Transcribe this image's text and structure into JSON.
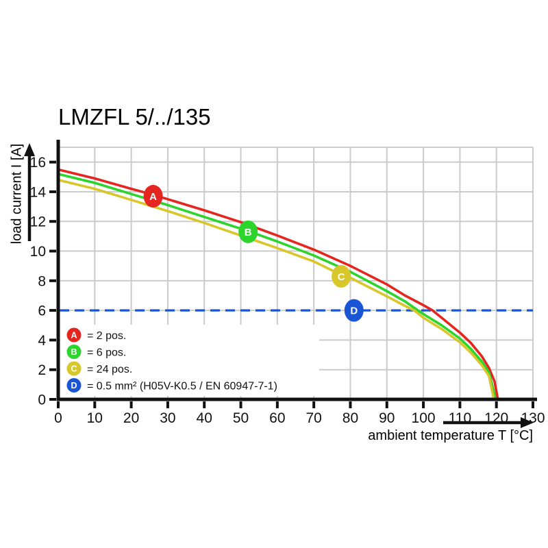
{
  "page": {
    "background": "#ffffff"
  },
  "chart_data": {
    "type": "line",
    "title": "LMZFL 5/../135",
    "xlabel": "ambient temperature T [°C]",
    "ylabel": "load current I [A]",
    "xlim": [
      0,
      130
    ],
    "ylim": [
      0,
      17
    ],
    "x_ticks": [
      0,
      10,
      20,
      30,
      40,
      50,
      60,
      70,
      80,
      90,
      100,
      110,
      120,
      130
    ],
    "y_ticks": [
      0,
      2,
      4,
      6,
      8,
      10,
      12,
      14,
      16
    ],
    "grid": true,
    "grid_color": "#cbcbcb",
    "axis_color": "#111111",
    "series": [
      {
        "id": "A",
        "name": "2 pos.",
        "color": "#e52520",
        "marker": {
          "letter": "A",
          "t": 26,
          "i": 13.7
        },
        "points": [
          [
            0,
            15.5
          ],
          [
            10,
            14.9
          ],
          [
            20,
            14.2
          ],
          [
            26,
            13.8
          ],
          [
            30,
            13.5
          ],
          [
            40,
            12.75
          ],
          [
            50,
            11.95
          ],
          [
            60,
            11.05
          ],
          [
            70,
            10.1
          ],
          [
            80,
            9.0
          ],
          [
            90,
            7.75
          ],
          [
            95,
            7.0
          ],
          [
            100,
            6.35
          ],
          [
            102.5,
            6.0
          ],
          [
            105,
            5.5
          ],
          [
            110,
            4.5
          ],
          [
            113,
            3.8
          ],
          [
            116,
            2.9
          ],
          [
            118,
            2.1
          ],
          [
            119.5,
            1.2
          ],
          [
            120.4,
            0
          ]
        ]
      },
      {
        "id": "B",
        "name": "6 pos.",
        "color": "#2cd42c",
        "marker": {
          "letter": "B",
          "t": 52,
          "i": 11.3
        },
        "points": [
          [
            0,
            15.2
          ],
          [
            10,
            14.6
          ],
          [
            20,
            13.85
          ],
          [
            30,
            13.1
          ],
          [
            40,
            12.3
          ],
          [
            52,
            11.35
          ],
          [
            60,
            10.65
          ],
          [
            70,
            9.7
          ],
          [
            80,
            8.6
          ],
          [
            90,
            7.3
          ],
          [
            95,
            6.6
          ],
          [
            98.5,
            6.0
          ],
          [
            100,
            5.75
          ],
          [
            105,
            5.0
          ],
          [
            110,
            4.1
          ],
          [
            113,
            3.4
          ],
          [
            116,
            2.55
          ],
          [
            118,
            1.8
          ],
          [
            119.8,
            0
          ]
        ]
      },
      {
        "id": "C",
        "name": "24 pos.",
        "color": "#d7c72b",
        "marker": {
          "letter": "C",
          "t": 77.5,
          "i": 8.3
        },
        "points": [
          [
            0,
            14.8
          ],
          [
            10,
            14.2
          ],
          [
            20,
            13.45
          ],
          [
            30,
            12.7
          ],
          [
            40,
            11.9
          ],
          [
            50,
            11.05
          ],
          [
            60,
            10.2
          ],
          [
            70,
            9.3
          ],
          [
            77.5,
            8.4
          ],
          [
            80,
            8.2
          ],
          [
            90,
            6.95
          ],
          [
            95,
            6.3
          ],
          [
            97.5,
            6.0
          ],
          [
            100,
            5.5
          ],
          [
            105,
            4.75
          ],
          [
            110,
            3.85
          ],
          [
            113,
            3.15
          ],
          [
            116,
            2.3
          ],
          [
            118,
            1.55
          ],
          [
            119.3,
            0
          ]
        ]
      }
    ],
    "reference_line": {
      "id": "D",
      "value": 6,
      "style": "dashed",
      "color": "#1a55d5",
      "label": "0.5 mm² (H05V-K0.5 / EN 60947-7-1)",
      "marker": {
        "letter": "D",
        "t": 81,
        "i": 6
      }
    },
    "legend": [
      {
        "letter": "A",
        "color": "#e52520",
        "label": "= 2 pos."
      },
      {
        "letter": "B",
        "color": "#2cd42c",
        "label": "= 6 pos."
      },
      {
        "letter": "C",
        "color": "#d7c72b",
        "label": "= 24 pos."
      },
      {
        "letter": "D",
        "color": "#1a55d5",
        "label": "= 0.5 mm² (H05V-K0.5 / EN 60947-7-1)"
      }
    ],
    "legend_position": "inside-bottom-left"
  }
}
